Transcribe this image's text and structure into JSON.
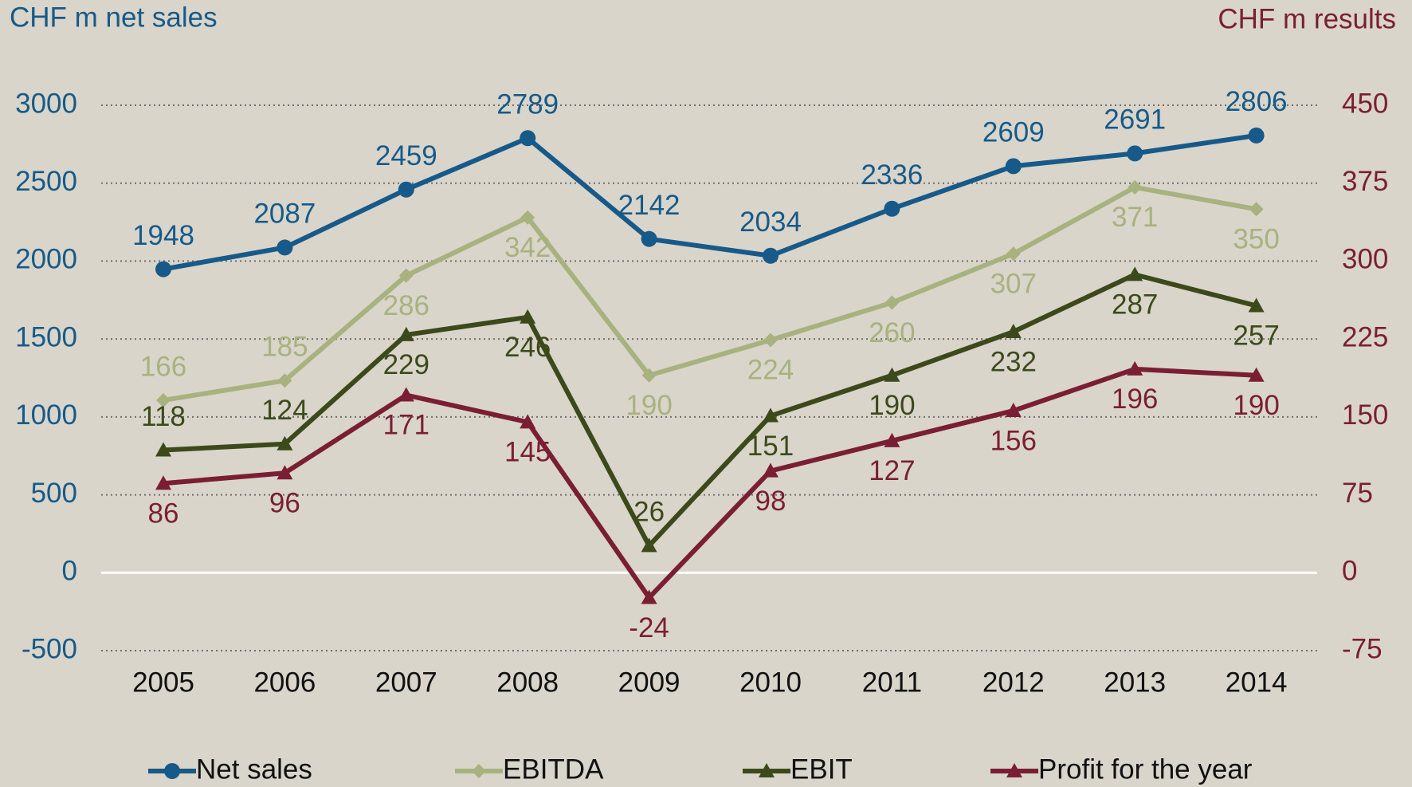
{
  "chart_data": {
    "type": "line",
    "y_axis_label": "CHF m net sales",
    "y2_axis_label": "CHF m results",
    "categories": [
      "2005",
      "2006",
      "2007",
      "2008",
      "2009",
      "2010",
      "2011",
      "2012",
      "2013",
      "2014"
    ],
    "series": [
      {
        "name": "Net sales",
        "color": "#175a89",
        "marker": "circle",
        "values": [
          1948,
          2087,
          2459,
          2789,
          2142,
          2034,
          2336,
          2609,
          2691,
          2806
        ]
      },
      {
        "name": "EBITDA",
        "color": "#a8b27f",
        "marker": "diamond",
        "axis": "y2",
        "values": [
          166,
          185,
          286,
          342,
          190,
          224,
          260,
          307,
          371,
          350
        ]
      },
      {
        "name": "EBIT",
        "color": "#3c4a1b",
        "marker": "triangle",
        "axis": "y2",
        "values": [
          118,
          124,
          229,
          246,
          26,
          151,
          190,
          232,
          287,
          257
        ]
      },
      {
        "name": "Profit for the year",
        "color": "#7a1f33",
        "marker": "triangle",
        "axis": "y2",
        "values": [
          86,
          96,
          171,
          145,
          -24,
          98,
          127,
          156,
          196,
          190
        ]
      }
    ],
    "ylim": [
      -500,
      3000
    ],
    "yticks": [
      -500,
      0,
      500,
      1000,
      1500,
      2000,
      2500,
      3000
    ],
    "y2lim": [
      -75,
      450
    ],
    "y2ticks": [
      -75,
      0,
      75,
      150,
      225,
      300,
      375,
      450
    ],
    "grid": true,
    "legend": "bottom"
  }
}
